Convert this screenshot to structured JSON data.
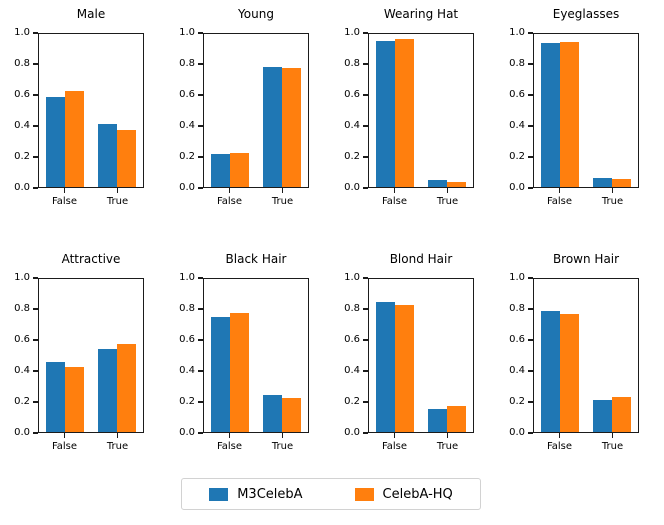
{
  "chart_data": {
    "type": "bar",
    "layout": {
      "rows": 2,
      "cols": 4,
      "legend_position": "bottom-center",
      "grid": false
    },
    "categories": [
      "False",
      "True"
    ],
    "xlabel": "",
    "ylabel": "",
    "ylim": [
      0.0,
      1.0
    ],
    "ytick_labels": [
      "0.0",
      "0.2",
      "0.4",
      "0.6",
      "0.8",
      "1.0"
    ],
    "series": [
      {
        "name": "M3CelebA",
        "color": "#1f77b4"
      },
      {
        "name": "CelebA-HQ",
        "color": "#ff7f0e"
      }
    ],
    "subplots": [
      {
        "title": "Male",
        "series": [
          {
            "name": "M3CelebA",
            "values": [
              0.59,
              0.41
            ]
          },
          {
            "name": "CelebA-HQ",
            "values": [
              0.63,
              0.37
            ]
          }
        ]
      },
      {
        "title": "Young",
        "series": [
          {
            "name": "M3CelebA",
            "values": [
              0.215,
              0.785
            ]
          },
          {
            "name": "CelebA-HQ",
            "values": [
              0.22,
              0.78
            ]
          }
        ]
      },
      {
        "title": "Wearing Hat",
        "series": [
          {
            "name": "M3CelebA",
            "values": [
              0.955,
              0.045
            ]
          },
          {
            "name": "CelebA-HQ",
            "values": [
              0.965,
              0.035
            ]
          }
        ]
      },
      {
        "title": "Eyeglasses",
        "series": [
          {
            "name": "M3CelebA",
            "values": [
              0.94,
              0.06
            ]
          },
          {
            "name": "CelebA-HQ",
            "values": [
              0.95,
              0.05
            ]
          }
        ]
      },
      {
        "title": "Attractive",
        "series": [
          {
            "name": "M3CelebA",
            "values": [
              0.455,
              0.545
            ]
          },
          {
            "name": "CelebA-HQ",
            "values": [
              0.425,
              0.575
            ]
          }
        ]
      },
      {
        "title": "Black Hair",
        "series": [
          {
            "name": "M3CelebA",
            "values": [
              0.755,
              0.245
            ]
          },
          {
            "name": "CelebA-HQ",
            "values": [
              0.78,
              0.22
            ]
          }
        ]
      },
      {
        "title": "Blond Hair",
        "series": [
          {
            "name": "M3CelebA",
            "values": [
              0.85,
              0.15
            ]
          },
          {
            "name": "CelebA-HQ",
            "values": [
              0.83,
              0.17
            ]
          }
        ]
      },
      {
        "title": "Brown Hair",
        "series": [
          {
            "name": "M3CelebA",
            "values": [
              0.79,
              0.21
            ]
          },
          {
            "name": "CelebA-HQ",
            "values": [
              0.77,
              0.23
            ]
          }
        ]
      }
    ]
  }
}
